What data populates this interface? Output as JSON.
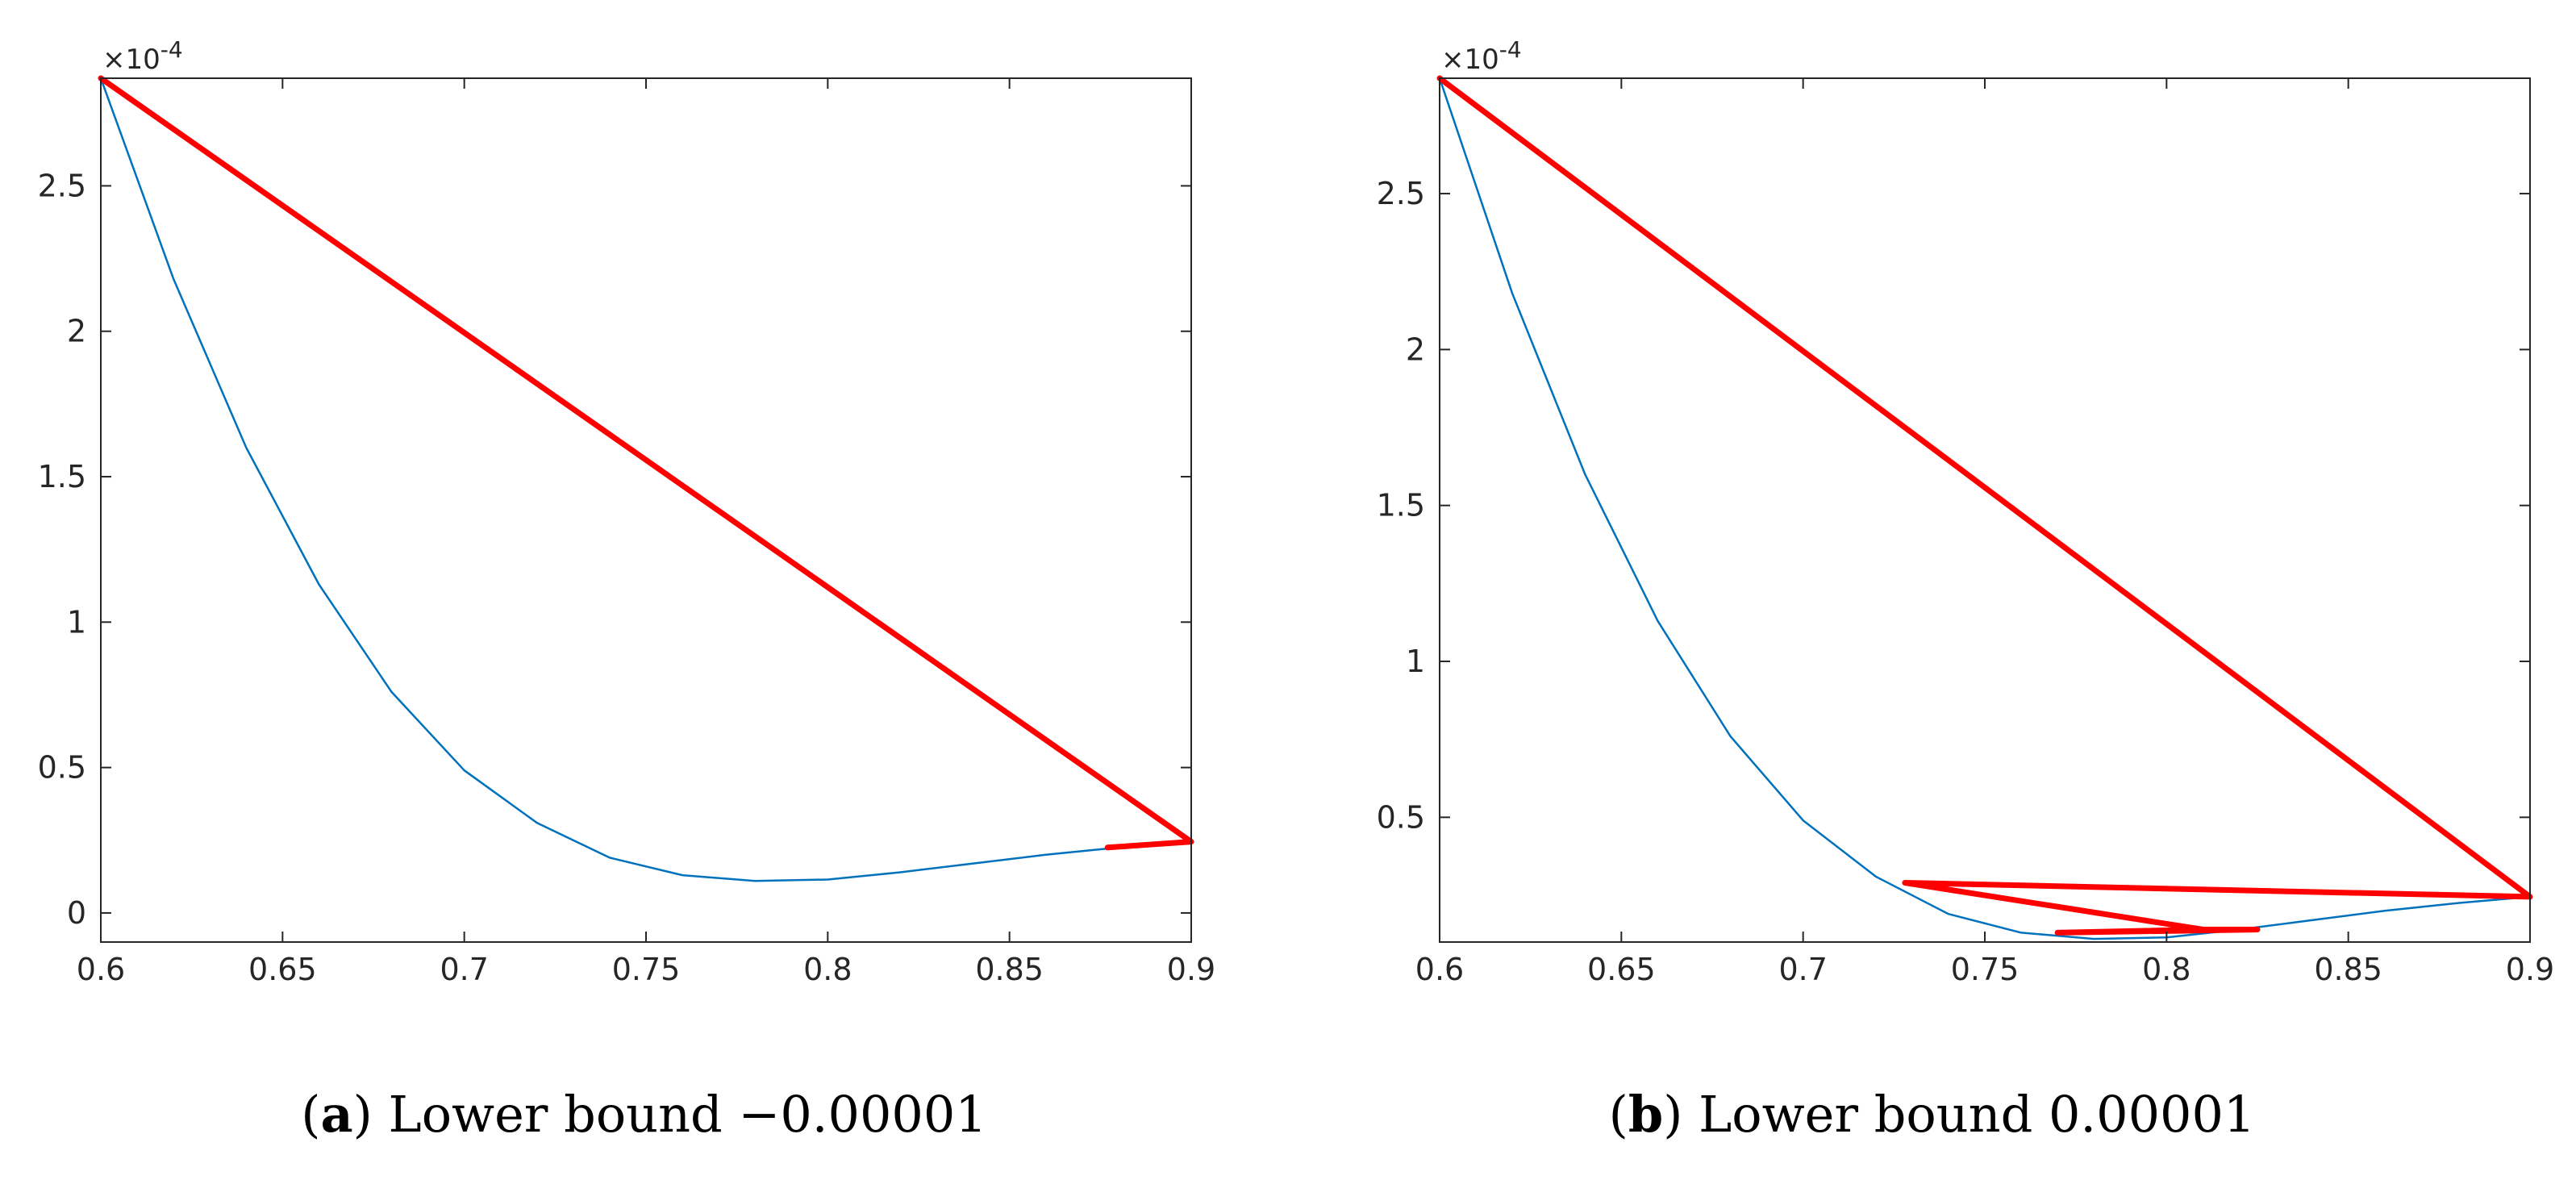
{
  "chart_data": [
    {
      "type": "line",
      "panel_letter": "a",
      "caption": "Lower bound −0.00001",
      "xlim": [
        0.6,
        0.9
      ],
      "ylim": [
        -0.1,
        2.87
      ],
      "y_multiplier": "×10^-4",
      "y_exponent_text": "-4",
      "xticks": [
        0.6,
        0.65,
        0.7,
        0.75,
        0.8,
        0.85,
        0.9
      ],
      "xtick_labels": [
        "0.6",
        "0.65",
        "0.7",
        "0.75",
        "0.8",
        "0.85",
        "0.9"
      ],
      "yticks": [
        0,
        0.5,
        1,
        1.5,
        2,
        2.5
      ],
      "ytick_labels": [
        "0",
        "0.5",
        "1",
        "1.5",
        "2",
        "2.5"
      ],
      "grid": false,
      "series": [
        {
          "color": "#0072BD",
          "x": [
            0.6,
            0.62,
            0.64,
            0.66,
            0.68,
            0.7,
            0.72,
            0.74,
            0.76,
            0.78,
            0.8,
            0.82,
            0.84,
            0.86,
            0.88,
            0.9
          ],
          "y": [
            2.87,
            2.18,
            1.6,
            1.13,
            0.76,
            0.49,
            0.31,
            0.19,
            0.13,
            0.11,
            0.115,
            0.14,
            0.17,
            0.2,
            0.225,
            0.245
          ]
        },
        {
          "color": "#FF0000",
          "x": [
            0.6,
            0.9,
            0.877,
            0.9
          ],
          "y": [
            2.87,
            0.245,
            0.225,
            0.245
          ]
        }
      ]
    },
    {
      "type": "line",
      "panel_letter": "b",
      "caption": "Lower bound 0.00001",
      "xlim": [
        0.6,
        0.9
      ],
      "ylim": [
        0.1,
        2.87
      ],
      "y_multiplier": "×10^-4",
      "y_exponent_text": "-4",
      "xticks": [
        0.6,
        0.65,
        0.7,
        0.75,
        0.8,
        0.85,
        0.9
      ],
      "xtick_labels": [
        "0.6",
        "0.65",
        "0.7",
        "0.75",
        "0.8",
        "0.85",
        "0.9"
      ],
      "yticks": [
        0.5,
        1,
        1.5,
        2,
        2.5
      ],
      "ytick_labels": [
        "0.5",
        "1",
        "1.5",
        "2",
        "2.5"
      ],
      "grid": false,
      "series": [
        {
          "color": "#0072BD",
          "x": [
            0.6,
            0.62,
            0.64,
            0.66,
            0.68,
            0.7,
            0.72,
            0.74,
            0.76,
            0.78,
            0.8,
            0.82,
            0.84,
            0.86,
            0.88,
            0.9
          ],
          "y": [
            2.87,
            2.18,
            1.6,
            1.13,
            0.76,
            0.49,
            0.31,
            0.19,
            0.13,
            0.11,
            0.115,
            0.14,
            0.17,
            0.2,
            0.225,
            0.245
          ]
        },
        {
          "color": "#FF0000",
          "x": [
            0.6,
            0.9,
            0.728,
            0.81,
            0.77,
            0.825,
            0.81,
            0.728,
            0.9
          ],
          "y": [
            2.87,
            0.245,
            0.29,
            0.14,
            0.13,
            0.14,
            0.14,
            0.29,
            0.245
          ]
        }
      ]
    }
  ]
}
